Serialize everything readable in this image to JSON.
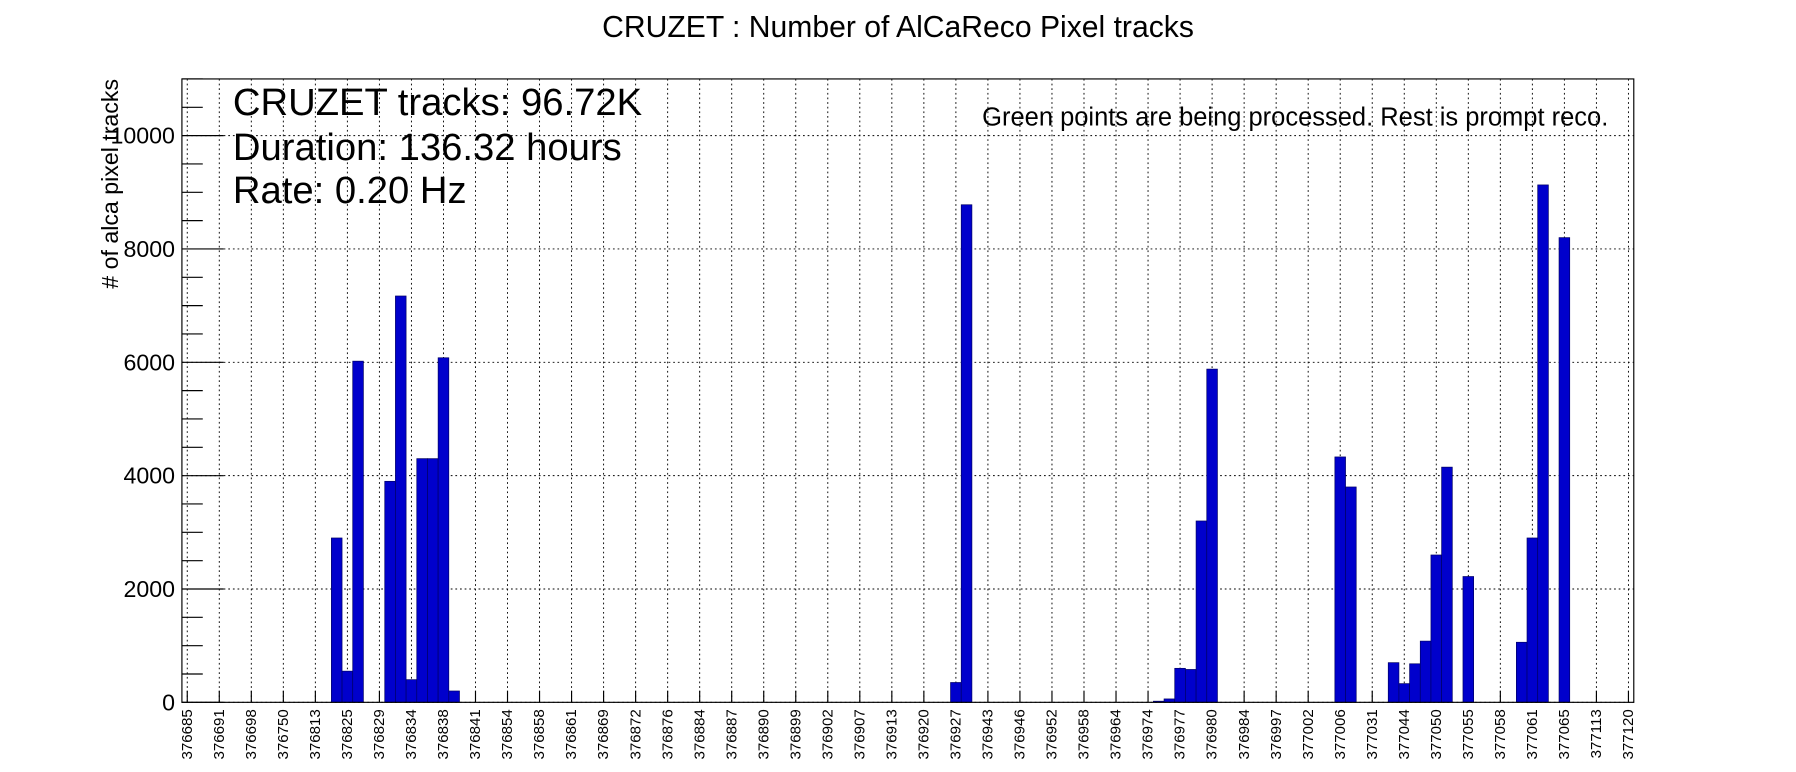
{
  "chart_data": {
    "type": "histogram",
    "title": "CRUZET : Number of AlCaReco Pixel tracks",
    "y_label": "# of alca pixel tracks",
    "stats": [
      "CRUZET tracks: 96.72K",
      "Duration: 136.32 hours",
      "Rate: 0.20 Hz"
    ],
    "annotation": "Green points are being processed. Rest is prompt reco.",
    "color": "#0000cc",
    "grid": true,
    "ylim": [
      0,
      11000
    ],
    "yticks": [
      0,
      2000,
      4000,
      6000,
      8000,
      10000
    ],
    "categories": [
      "376685",
      null,
      null,
      "376691",
      null,
      null,
      "376698",
      null,
      null,
      "376750",
      null,
      null,
      "376813",
      null,
      null,
      "376825",
      null,
      null,
      "376829",
      null,
      null,
      "376834",
      null,
      null,
      "376838",
      null,
      null,
      "376841",
      null,
      null,
      "376854",
      null,
      null,
      "376858",
      null,
      null,
      "376861",
      null,
      null,
      "376869",
      null,
      null,
      "376872",
      null,
      null,
      "376876",
      null,
      null,
      "376884",
      null,
      null,
      "376887",
      null,
      null,
      "376890",
      null,
      null,
      "376899",
      null,
      null,
      "376902",
      null,
      null,
      "376907",
      null,
      null,
      "376913",
      null,
      null,
      "376920",
      null,
      null,
      "376927",
      null,
      null,
      "376943",
      null,
      null,
      "376946",
      null,
      null,
      "376952",
      null,
      null,
      "376958",
      null,
      null,
      "376964",
      null,
      null,
      "376974",
      null,
      null,
      "376977",
      null,
      null,
      "376980",
      null,
      null,
      "376984",
      null,
      null,
      "376997",
      null,
      null,
      "377002",
      null,
      null,
      "377006",
      null,
      null,
      "377031",
      null,
      null,
      "377044",
      null,
      null,
      "377050",
      null,
      null,
      "377055",
      null,
      null,
      "377058",
      null,
      null,
      "377061",
      null,
      null,
      "377065",
      null,
      null,
      "377113",
      null,
      null,
      "377120"
    ],
    "values": [
      0,
      0,
      0,
      0,
      0,
      0,
      0,
      0,
      0,
      0,
      0,
      0,
      0,
      0,
      2900,
      550,
      6020,
      0,
      0,
      3900,
      7170,
      400,
      4300,
      4300,
      6080,
      200,
      0,
      0,
      0,
      0,
      0,
      0,
      0,
      0,
      0,
      0,
      0,
      0,
      0,
      0,
      0,
      0,
      0,
      0,
      0,
      0,
      0,
      0,
      0,
      0,
      0,
      0,
      0,
      0,
      0,
      0,
      0,
      0,
      0,
      0,
      0,
      0,
      0,
      0,
      0,
      0,
      0,
      0,
      0,
      0,
      0,
      0,
      350,
      8780,
      0,
      0,
      0,
      0,
      0,
      0,
      0,
      0,
      0,
      0,
      0,
      0,
      0,
      0,
      0,
      0,
      0,
      20,
      60,
      600,
      580,
      3200,
      5880,
      0,
      0,
      0,
      0,
      0,
      0,
      0,
      0,
      0,
      0,
      0,
      4330,
      3800,
      0,
      0,
      0,
      700,
      330,
      680,
      1080,
      2600,
      4150,
      0,
      2220,
      0,
      0,
      0,
      0,
      1060,
      2900,
      9130,
      0,
      8200,
      0,
      0,
      0,
      0,
      0,
      0
    ]
  }
}
